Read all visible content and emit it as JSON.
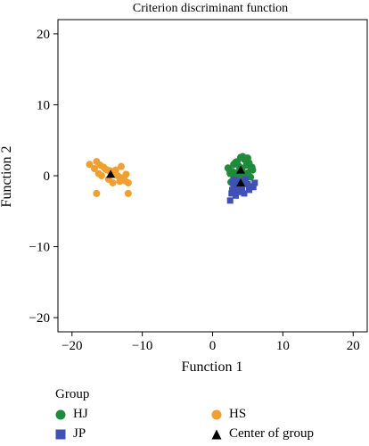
{
  "chart_data": {
    "type": "scatter",
    "title": "Criterion discriminant function",
    "xlabel": "Function 1",
    "ylabel": "Function 2",
    "xlim": [
      -22,
      22
    ],
    "ylim": [
      -22,
      22
    ],
    "xticks": [
      -20,
      -10,
      0,
      10,
      20
    ],
    "yticks": [
      -20,
      -10,
      0,
      10,
      20
    ],
    "grid": false,
    "legend_title": "Group",
    "legend_position": "bottom",
    "series": [
      {
        "name": "HJ",
        "marker": "circle",
        "color": "#1f8a3c",
        "points": [
          [
            3.5,
            2.0
          ],
          [
            4.0,
            2.6
          ],
          [
            4.5,
            2.3
          ],
          [
            5.0,
            2.5
          ],
          [
            3.0,
            1.6
          ],
          [
            3.8,
            1.3
          ],
          [
            4.2,
            1.0
          ],
          [
            4.8,
            1.5
          ],
          [
            5.2,
            1.8
          ],
          [
            5.5,
            1.0
          ],
          [
            5.7,
            0.8
          ],
          [
            2.8,
            0.6
          ],
          [
            3.2,
            0.3
          ],
          [
            3.6,
            0.5
          ],
          [
            4.4,
            0.2
          ],
          [
            5.0,
            0.4
          ],
          [
            2.2,
            1.1
          ],
          [
            2.5,
            0.3
          ],
          [
            3.0,
            -0.4
          ],
          [
            3.7,
            -0.2
          ],
          [
            4.6,
            -0.5
          ],
          [
            5.4,
            -0.2
          ],
          [
            2.6,
            -0.9
          ],
          [
            3.3,
            1.9
          ],
          [
            4.3,
            2.7
          ],
          [
            5.6,
            1.2
          ],
          [
            3.9,
            -0.8
          ],
          [
            2.4,
            0.8
          ]
        ]
      },
      {
        "name": "JP",
        "marker": "square",
        "color": "#3f51b5",
        "points": [
          [
            3.0,
            -1.5
          ],
          [
            3.5,
            -2.0
          ],
          [
            4.2,
            -1.8
          ],
          [
            5.0,
            -1.2
          ],
          [
            6.0,
            -1.0
          ],
          [
            2.7,
            -2.5
          ],
          [
            3.3,
            -2.8
          ],
          [
            4.5,
            -2.5
          ],
          [
            2.9,
            -1.0
          ],
          [
            3.9,
            -1.3
          ],
          [
            5.5,
            -1.5
          ],
          [
            2.5,
            -3.5
          ],
          [
            3.8,
            -0.8
          ],
          [
            4.7,
            -0.5
          ],
          [
            3.1,
            -0.6
          ],
          [
            5.8,
            -1.6
          ],
          [
            2.8,
            -2.0
          ],
          [
            4.1,
            -2.3
          ],
          [
            3.4,
            -1.1
          ],
          [
            5.2,
            -2.0
          ],
          [
            4.4,
            -1.0
          ]
        ]
      },
      {
        "name": "HS",
        "marker": "circle",
        "color": "#f0a030",
        "points": [
          [
            -17.5,
            1.6
          ],
          [
            -16.5,
            2.0
          ],
          [
            -16.8,
            1.0
          ],
          [
            -16.0,
            1.5
          ],
          [
            -15.5,
            1.2
          ],
          [
            -15.0,
            0.8
          ],
          [
            -14.5,
            0.5
          ],
          [
            -14.0,
            0.2
          ],
          [
            -13.5,
            0.0
          ],
          [
            -13.0,
            -0.3
          ],
          [
            -12.5,
            -0.7
          ],
          [
            -15.8,
            0.0
          ],
          [
            -14.8,
            -0.5
          ],
          [
            -14.2,
            -1.0
          ],
          [
            -13.2,
            -0.8
          ],
          [
            -12.0,
            -1.0
          ],
          [
            -13.8,
            0.8
          ],
          [
            -16.2,
            0.3
          ],
          [
            -15.2,
            0.9
          ],
          [
            -12.3,
            0.2
          ],
          [
            -16.5,
            -2.5
          ],
          [
            -12.0,
            -2.5
          ],
          [
            -13.0,
            1.3
          ],
          [
            -14.6,
            0.7
          ]
        ]
      },
      {
        "name": "Center of group",
        "marker": "triangle",
        "color": "#000000",
        "points": [
          [
            -14.5,
            0.2
          ],
          [
            4.0,
            0.8
          ],
          [
            4.0,
            -1.0
          ]
        ]
      }
    ]
  }
}
